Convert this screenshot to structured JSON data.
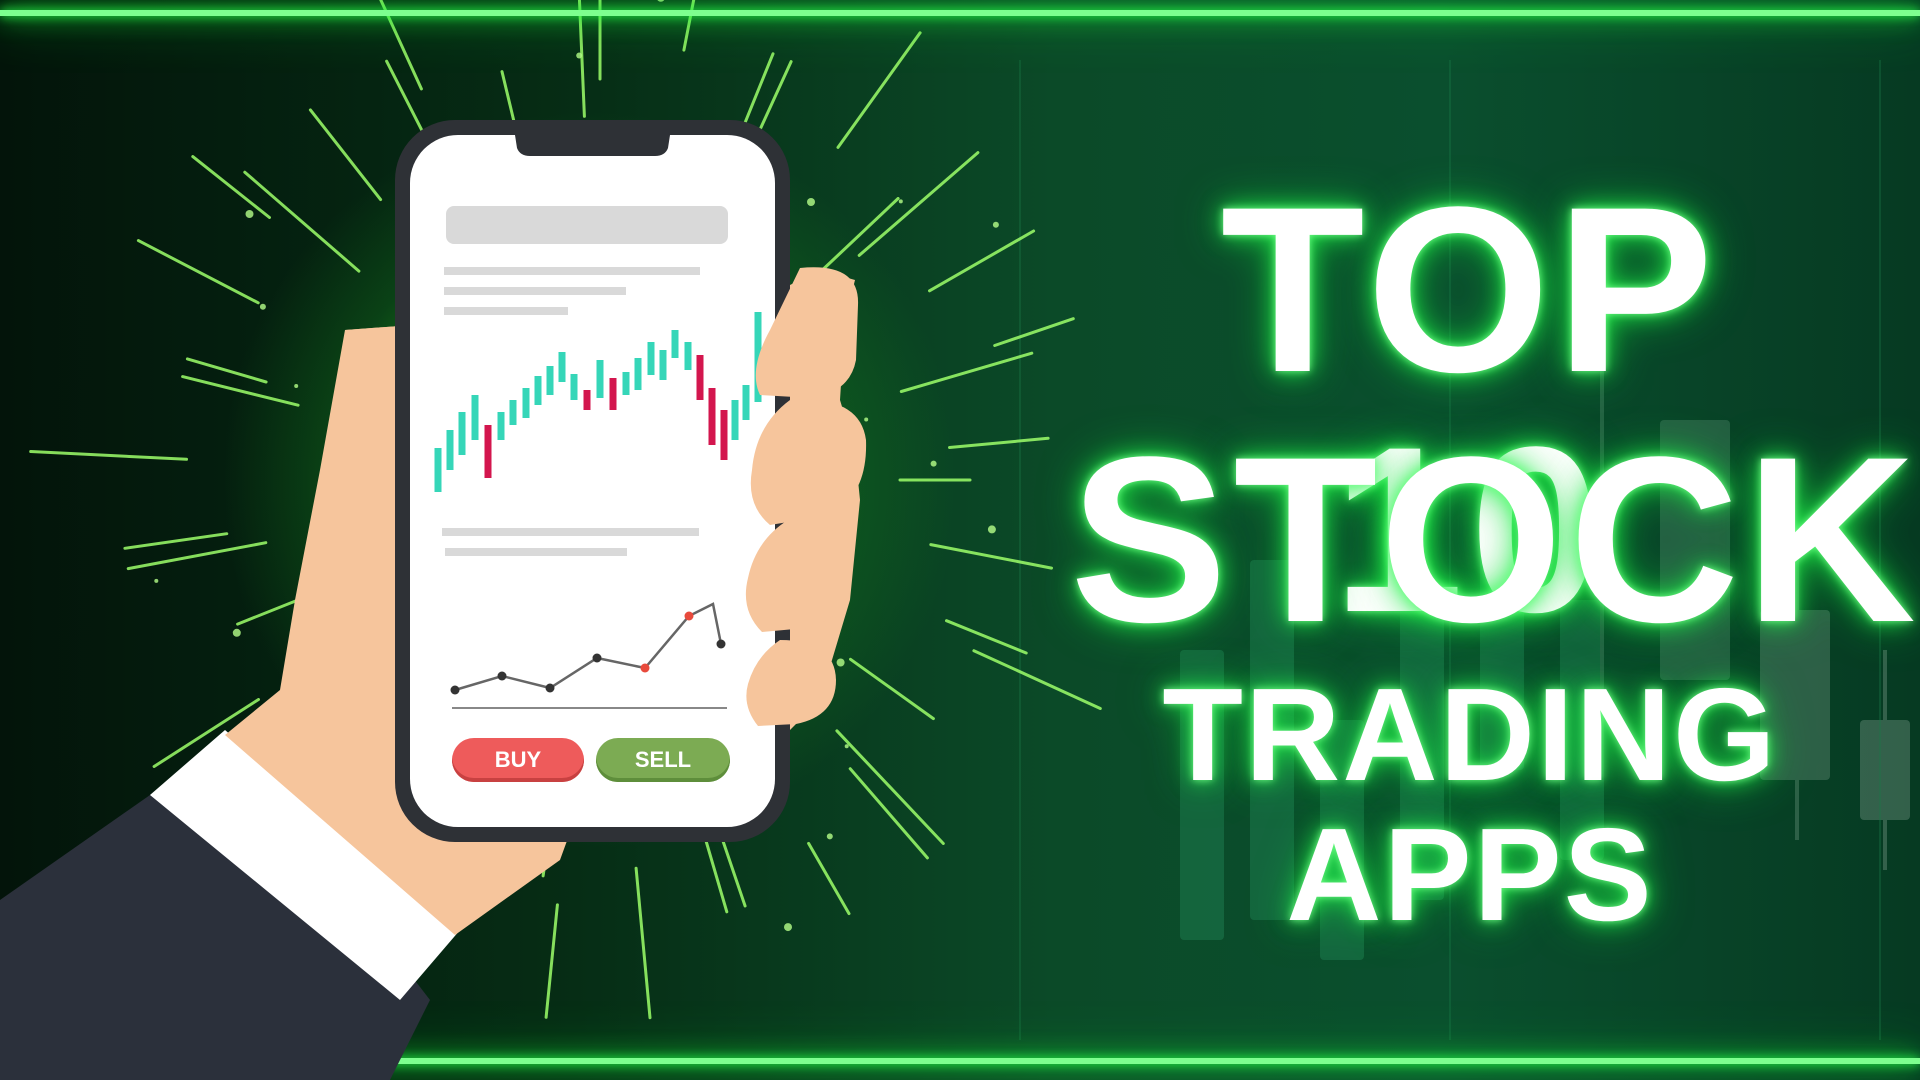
{
  "headline": {
    "line1": "TOP 10",
    "line2": "STOCK",
    "line3": "TRADING APPS"
  },
  "phone": {
    "buy_label": "BUY",
    "sell_label": "SELL"
  },
  "colors": {
    "neon_green": "#7dff8f",
    "glow_green": "#27ff4b",
    "bullish_candle": "#35d6b8",
    "bearish_candle": "#d3164e",
    "buy": "#ee5b5b",
    "sell": "#7cab53",
    "skin": "#f6c59c",
    "sleeve": "#2b303b",
    "cuff": "#ffffff"
  }
}
